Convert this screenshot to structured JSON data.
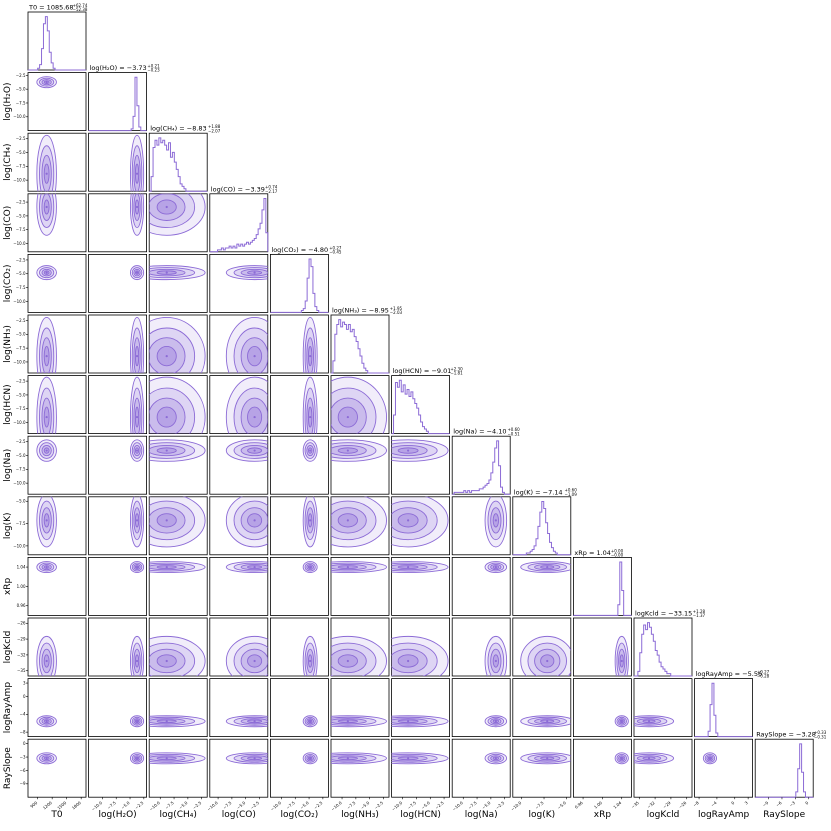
{
  "chart_data": {
    "type": "corner",
    "style": {
      "color": "#8c6bd6",
      "contour_levels": 4,
      "grid": false
    },
    "parameters": [
      {
        "name": "T0",
        "label": "T0",
        "median": 1085.68,
        "err_plus": 62.74,
        "err_minus": 52.38,
        "title": "T0 = 1085.68",
        "title_sup": "+62.74",
        "title_sub": "−52.38",
        "range": [
          700,
          1900
        ],
        "ticks": [
          {
            "v": 900,
            "t": "900"
          },
          {
            "v": 1200,
            "t": "1200"
          },
          {
            "v": 1500,
            "t": "1500"
          },
          {
            "v": 1800,
            "t": "1800"
          }
        ],
        "hist": [
          0,
          0,
          0,
          0,
          0,
          1,
          3,
          12,
          26,
          30,
          22,
          10,
          4,
          1,
          0,
          0,
          0,
          0,
          0,
          0,
          0,
          0,
          0,
          0,
          0,
          0,
          0,
          0,
          0,
          0
        ]
      },
      {
        "name": "log(H2O)",
        "label": "log(H₂O)",
        "median": -3.73,
        "err_plus": 0.21,
        "err_minus": 0.23,
        "title": "log(H₂O) = −3.73",
        "title_sup": "+0.21",
        "title_sub": "−0.23",
        "range": [
          -12.5,
          -2
        ],
        "ticks": [
          {
            "v": -10,
            "t": "−10.0"
          },
          {
            "v": -7.5,
            "t": "−7.5"
          },
          {
            "v": -5,
            "t": "−5.0"
          },
          {
            "v": -2.5,
            "t": "−2.5"
          }
        ],
        "hist": [
          0,
          0,
          0,
          0,
          0,
          0,
          0,
          0,
          0,
          0,
          0,
          0,
          0,
          0,
          0,
          0,
          0,
          0,
          0,
          0,
          0,
          0,
          1,
          8,
          30,
          14,
          2,
          0,
          0,
          0
        ]
      },
      {
        "name": "log(CH4)",
        "label": "log(CH₄)",
        "median": -8.83,
        "err_plus": 1.88,
        "err_minus": 2.07,
        "title": "log(CH₄) = −8.83",
        "title_sup": "+1.88",
        "title_sub": "−2.07",
        "range": [
          -12,
          -1.5
        ],
        "ticks": [
          {
            "v": -10,
            "t": "−10.0"
          },
          {
            "v": -7.5,
            "t": "−7.5"
          },
          {
            "v": -5,
            "t": "−5.0"
          },
          {
            "v": -2.5,
            "t": "−2.5"
          }
        ],
        "hist": [
          0,
          6,
          18,
          21,
          19,
          22,
          20,
          21,
          19,
          17,
          20,
          14,
          16,
          12,
          9,
          6,
          3,
          2,
          1,
          0,
          0,
          0,
          0,
          0,
          0,
          0,
          0,
          0,
          0,
          0
        ]
      },
      {
        "name": "log(CO)",
        "label": "log(CO)",
        "median": -3.39,
        "err_plus": 0.74,
        "err_minus": 2.17,
        "title": "log(CO) = −3.39",
        "title_sup": "+0.74",
        "title_sub": "−2.17",
        "range": [
          -11.5,
          -1
        ],
        "ticks": [
          {
            "v": -10,
            "t": "−10.0"
          },
          {
            "v": -7.5,
            "t": "−7.5"
          },
          {
            "v": -5,
            "t": "−5.0"
          },
          {
            "v": -2.5,
            "t": "−2.5"
          }
        ],
        "hist": [
          0,
          0,
          0,
          0,
          1,
          1,
          2,
          1,
          2,
          2,
          3,
          2,
          3,
          2,
          4,
          3,
          4,
          3,
          4,
          5,
          4,
          5,
          6,
          7,
          9,
          12,
          15,
          22,
          28,
          10
        ]
      },
      {
        "name": "log(CO2)",
        "label": "log(CO₂)",
        "median": -4.8,
        "err_plus": 0.27,
        "err_minus": 0.45,
        "title": "log(CO₂) = −4.80",
        "title_sup": "+0.27",
        "title_sub": "−0.45",
        "range": [
          -12,
          -1.5
        ],
        "ticks": [
          {
            "v": -10,
            "t": "−10.0"
          },
          {
            "v": -7.5,
            "t": "−7.5"
          },
          {
            "v": -5,
            "t": "−5.0"
          },
          {
            "v": -2.5,
            "t": "−2.5"
          }
        ],
        "hist": [
          0,
          0,
          0,
          0,
          0,
          0,
          0,
          0,
          0,
          0,
          0,
          0,
          0,
          0,
          0,
          0,
          1,
          2,
          6,
          18,
          28,
          24,
          10,
          3,
          1,
          0,
          0,
          0,
          0,
          0
        ]
      },
      {
        "name": "log(NH3)",
        "label": "log(NH₃)",
        "median": -8.95,
        "err_plus": 1.95,
        "err_minus": 2.03,
        "title": "log(NH₃) = −8.95",
        "title_sup": "+1.95",
        "title_sub": "−2.03",
        "range": [
          -12,
          -1.5
        ],
        "ticks": [
          {
            "v": -10,
            "t": "−10.0"
          },
          {
            "v": -7.5,
            "t": "−7.5"
          },
          {
            "v": -5,
            "t": "−5.0"
          },
          {
            "v": -2.5,
            "t": "−2.5"
          }
        ],
        "hist": [
          0,
          5,
          16,
          20,
          22,
          19,
          21,
          20,
          18,
          20,
          17,
          18,
          15,
          13,
          10,
          7,
          4,
          2,
          1,
          0,
          0,
          0,
          0,
          0,
          0,
          0,
          0,
          0,
          0,
          0
        ]
      },
      {
        "name": "log(HCN)",
        "label": "log(HCN)",
        "median": -9.01,
        "err_plus": 2.3,
        "err_minus": 1.81,
        "title": "log(HCN) = −9.01",
        "title_sup": "+2.30",
        "title_sub": "−1.81",
        "range": [
          -12,
          -1.5
        ],
        "ticks": [
          {
            "v": -10,
            "t": "−10.0"
          },
          {
            "v": -7.5,
            "t": "−7.5"
          },
          {
            "v": -5,
            "t": "−5.0"
          },
          {
            "v": -2.5,
            "t": "−2.5"
          }
        ],
        "hist": [
          0,
          8,
          22,
          20,
          23,
          18,
          21,
          17,
          19,
          16,
          18,
          15,
          13,
          11,
          8,
          5,
          3,
          2,
          1,
          0,
          0,
          0,
          0,
          0,
          0,
          0,
          0,
          0,
          0,
          0
        ]
      },
      {
        "name": "log(Na)",
        "label": "log(Na)",
        "median": -4.1,
        "err_plus": 0.6,
        "err_minus": 0.51,
        "title": "log(Na) = −4.10",
        "title_sup": "+0.60",
        "title_sub": "−0.51",
        "range": [
          -12,
          -1.5
        ],
        "ticks": [
          {
            "v": -10,
            "t": "−10.0"
          },
          {
            "v": -7.5,
            "t": "−7.5"
          },
          {
            "v": -5,
            "t": "−5.0"
          },
          {
            "v": -2.5,
            "t": "−2.5"
          }
        ],
        "hist": [
          0,
          1,
          1,
          1,
          1,
          1,
          2,
          1,
          2,
          1,
          2,
          2,
          2,
          2,
          3,
          3,
          4,
          5,
          6,
          8,
          12,
          18,
          26,
          30,
          16,
          4,
          1,
          0,
          0,
          0
        ]
      },
      {
        "name": "log(K)",
        "label": "log(K)",
        "median": -7.14,
        "err_plus": 0.6,
        "err_minus": 1.09,
        "title": "log(K) = −7.14",
        "title_sup": "+0.60",
        "title_sub": "−1.09",
        "range": [
          -11,
          -4.5
        ],
        "ticks": [
          {
            "v": -10,
            "t": "−10.0"
          },
          {
            "v": -7.5,
            "t": "−7.5"
          },
          {
            "v": -5,
            "t": "−5.0"
          }
        ],
        "hist": [
          0,
          0,
          0,
          0,
          0,
          0,
          0,
          1,
          1,
          2,
          3,
          5,
          9,
          16,
          24,
          30,
          26,
          18,
          12,
          7,
          4,
          2,
          1,
          0,
          0,
          0,
          0,
          0,
          0,
          0
        ]
      },
      {
        "name": "xRp",
        "label": "xRp",
        "median": 1.04,
        "err_plus": 0.0,
        "err_minus": 0.0,
        "title": "xRp = 1.04",
        "title_sup": "+0.00",
        "title_sub": "−0.00",
        "range": [
          0.94,
          1.06
        ],
        "ticks": [
          {
            "v": 0.96,
            "t": "0.96"
          },
          {
            "v": 1.0,
            "t": "1.00"
          },
          {
            "v": 1.04,
            "t": "1.04"
          }
        ],
        "hist": [
          0,
          0,
          0,
          0,
          0,
          0,
          0,
          0,
          0,
          0,
          0,
          0,
          0,
          0,
          0,
          0,
          0,
          0,
          0,
          0,
          0,
          0,
          0,
          6,
          30,
          14,
          0,
          0,
          0,
          0
        ]
      },
      {
        "name": "logKcld",
        "label": "logKcld",
        "median": -33.15,
        "err_plus": 1.28,
        "err_minus": 1.37,
        "title": "logKcld = −33.15",
        "title_sup": "+1.28",
        "title_sub": "−1.37",
        "range": [
          -36,
          -25
        ],
        "ticks": [
          {
            "v": -35,
            "t": "−35"
          },
          {
            "v": -32,
            "t": "−32"
          },
          {
            "v": -29,
            "t": "−29"
          },
          {
            "v": -26,
            "t": "−26"
          }
        ],
        "hist": [
          0,
          0,
          2,
          10,
          18,
          22,
          20,
          23,
          21,
          18,
          15,
          11,
          9,
          6,
          4,
          3,
          2,
          1,
          1,
          0,
          0,
          0,
          0,
          0,
          0,
          0,
          0,
          0,
          0,
          0
        ]
      },
      {
        "name": "logRayAmp",
        "label": "logRayAmp",
        "median": -5.56,
        "err_plus": 0.27,
        "err_minus": 0.28,
        "title": "logRayAmp = −5.56",
        "title_sup": "+0.27",
        "title_sub": "−0.28",
        "range": [
          -9,
          4
        ],
        "ticks": [
          {
            "v": -8,
            "t": "−8"
          },
          {
            "v": -4,
            "t": "−4"
          },
          {
            "v": 0,
            "t": "0"
          },
          {
            "v": 3,
            "t": "3"
          }
        ],
        "hist": [
          0,
          0,
          0,
          0,
          0,
          0,
          0,
          3,
          18,
          30,
          12,
          2,
          0,
          0,
          0,
          0,
          0,
          0,
          0,
          0,
          0,
          0,
          0,
          0,
          0,
          0,
          0,
          0,
          0,
          0
        ]
      },
      {
        "name": "RaySlope",
        "label": "RaySlope",
        "median": -3.28,
        "err_plus": 0.33,
        "err_minus": 0.31,
        "title": "RaySlope = −3.28",
        "title_sup": "+0.33",
        "title_sub": "−0.31",
        "range": [
          -12,
          1
        ],
        "ticks": [
          {
            "v": -9,
            "t": "−9"
          },
          {
            "v": -6,
            "t": "−6"
          },
          {
            "v": -3,
            "t": "−3"
          },
          {
            "v": 0,
            "t": "0"
          }
        ],
        "hist": [
          0,
          0,
          0,
          0,
          0,
          0,
          0,
          0,
          0,
          0,
          0,
          0,
          0,
          0,
          0,
          0,
          0,
          0,
          0,
          0,
          0,
          3,
          16,
          30,
          14,
          3,
          0,
          0,
          0,
          0
        ]
      }
    ]
  }
}
